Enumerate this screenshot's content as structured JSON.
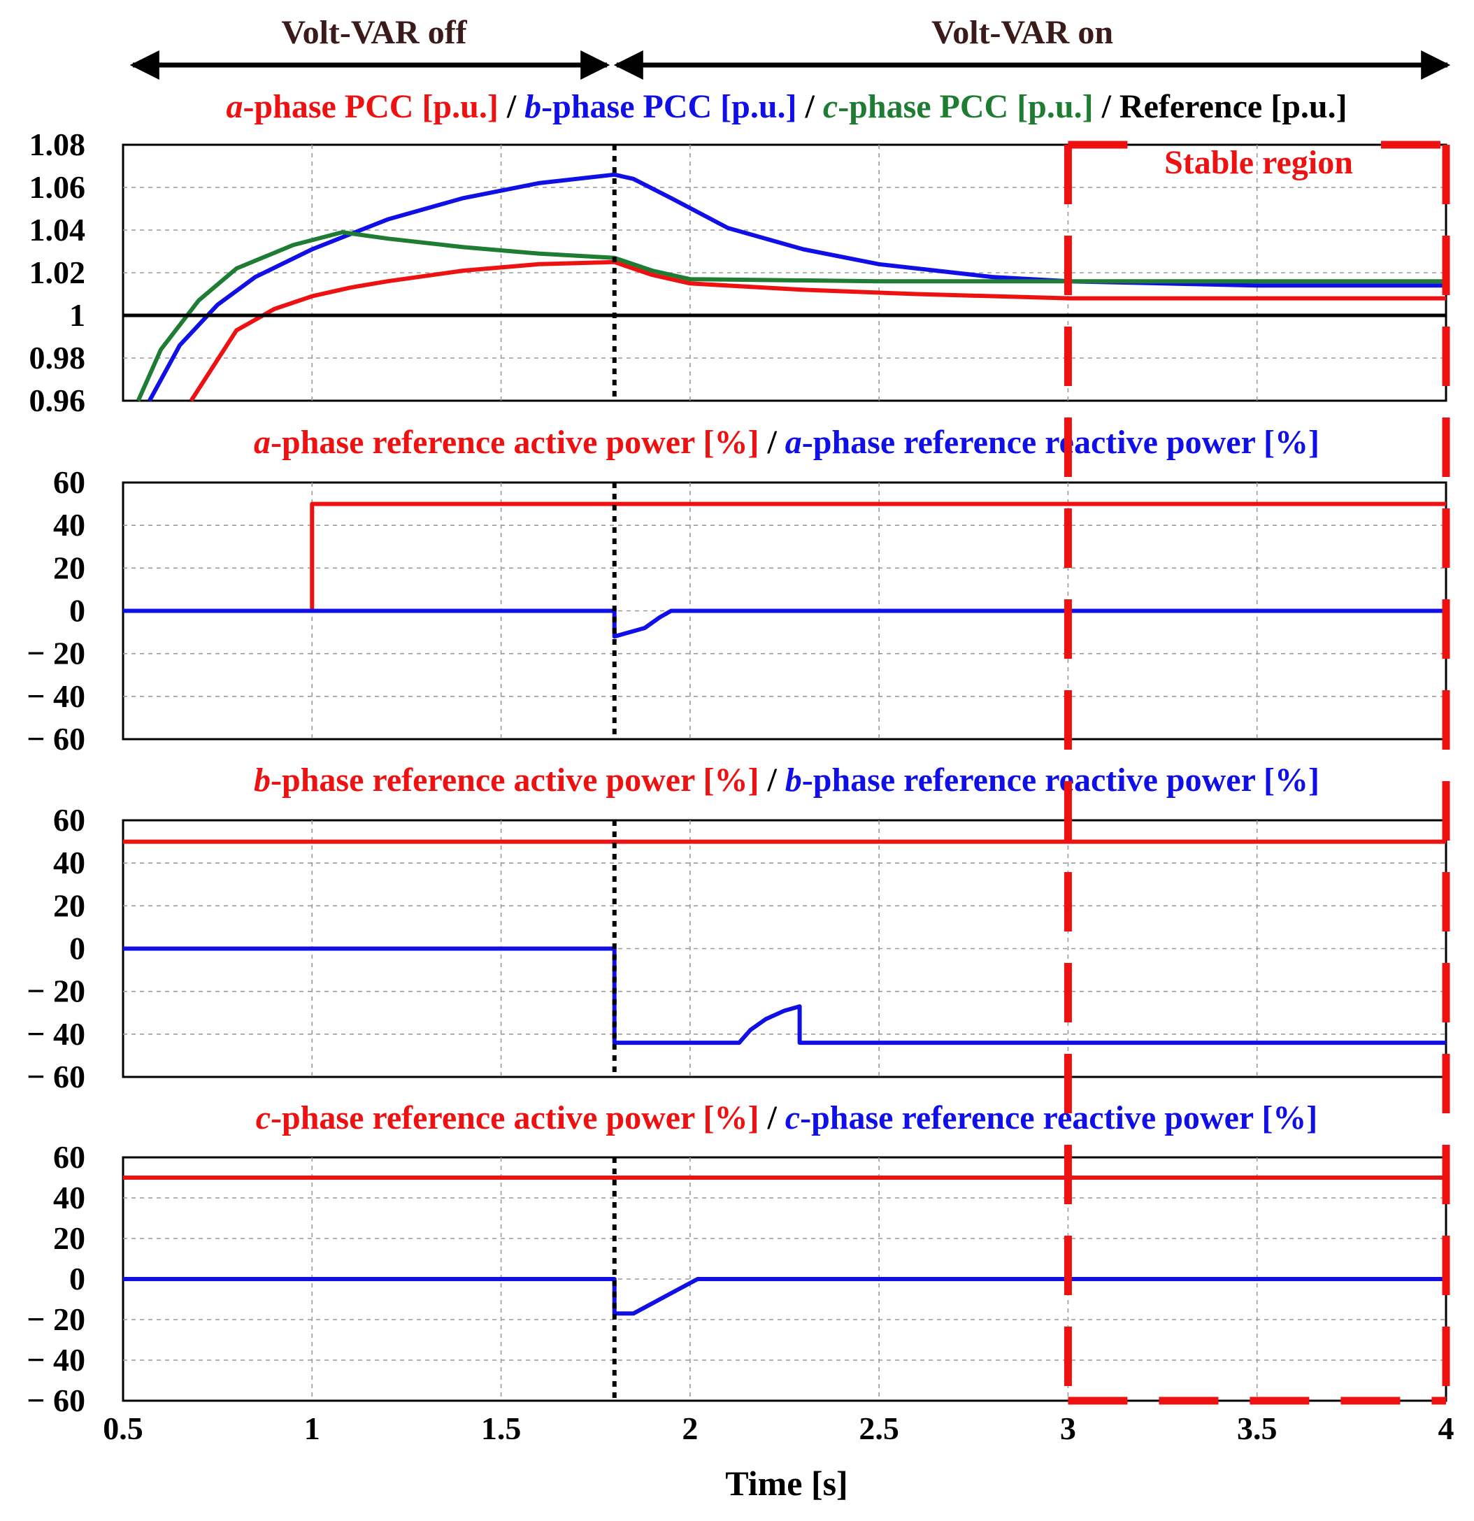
{
  "header": {
    "left_label": "Volt-VAR off",
    "right_label": "Volt-VAR on"
  },
  "stable_region_label": "Stable region",
  "x_axis": {
    "label": "Time [s]",
    "ticks": [
      "0.5",
      "1",
      "1.5",
      "2",
      "2.5",
      "3",
      "3.5",
      "4"
    ]
  },
  "colors": {
    "red": "#ee1111",
    "blue": "#1010e6",
    "green": "#1e7d32",
    "black": "#000000"
  },
  "chart_data": [
    {
      "type": "line",
      "title_parts": [
        {
          "text": "a",
          "italic": true,
          "color": "red"
        },
        {
          "text": "-phase PCC [p.u.]",
          "color": "red"
        },
        {
          "text": " / ",
          "color": "black"
        },
        {
          "text": "b",
          "italic": true,
          "color": "blue"
        },
        {
          "text": "-phase PCC [p.u.]",
          "color": "blue"
        },
        {
          "text": " / ",
          "color": "black"
        },
        {
          "text": "c",
          "italic": true,
          "color": "green"
        },
        {
          "text": "-phase PCC [p.u.]",
          "color": "green"
        },
        {
          "text": " / Reference [p.u.]",
          "color": "black"
        }
      ],
      "xlim": [
        0.5,
        4
      ],
      "ylim": [
        0.96,
        1.08
      ],
      "yticks": [
        "1.08",
        "1.06",
        "1.04",
        "1.02",
        "1",
        "0.98",
        "0.96"
      ],
      "series": [
        {
          "name": "a-phase PCC [p.u.]",
          "color": "red",
          "x": [
            0.68,
            0.8,
            0.9,
            1.0,
            1.1,
            1.2,
            1.4,
            1.6,
            1.8,
            1.9,
            2.0,
            2.3,
            2.6,
            3.0,
            3.5,
            4.0
          ],
          "y": [
            0.96,
            0.993,
            1.003,
            1.009,
            1.013,
            1.016,
            1.021,
            1.024,
            1.025,
            1.019,
            1.015,
            1.012,
            1.01,
            1.008,
            1.008,
            1.008
          ]
        },
        {
          "name": "b-phase PCC [p.u.]",
          "color": "blue",
          "x": [
            0.57,
            0.65,
            0.75,
            0.85,
            1.0,
            1.1,
            1.2,
            1.4,
            1.6,
            1.8,
            1.85,
            1.95,
            2.1,
            2.3,
            2.5,
            2.8,
            3.0,
            3.5,
            4.0
          ],
          "y": [
            0.96,
            0.986,
            1.005,
            1.018,
            1.031,
            1.038,
            1.045,
            1.055,
            1.062,
            1.066,
            1.064,
            1.055,
            1.041,
            1.031,
            1.024,
            1.018,
            1.016,
            1.014,
            1.014
          ]
        },
        {
          "name": "c-phase PCC [p.u.]",
          "color": "green",
          "x": [
            0.54,
            0.6,
            0.7,
            0.8,
            0.95,
            1.08,
            1.2,
            1.4,
            1.6,
            1.8,
            1.9,
            2.0,
            2.5,
            3.0,
            4.0
          ],
          "y": [
            0.96,
            0.984,
            1.007,
            1.022,
            1.033,
            1.039,
            1.036,
            1.032,
            1.029,
            1.027,
            1.021,
            1.017,
            1.016,
            1.016,
            1.016
          ]
        },
        {
          "name": "Reference [p.u.]",
          "color": "black",
          "x": [
            0.5,
            4.0
          ],
          "y": [
            1.0,
            1.0
          ]
        }
      ]
    },
    {
      "type": "line",
      "title_parts": [
        {
          "text": "a",
          "italic": true,
          "color": "red"
        },
        {
          "text": "-phase reference active power [%]",
          "color": "red"
        },
        {
          "text": " / ",
          "color": "black"
        },
        {
          "text": "a",
          "italic": true,
          "color": "blue"
        },
        {
          "text": "-phase reference reactive power [%]",
          "color": "blue"
        }
      ],
      "xlim": [
        0.5,
        4
      ],
      "ylim": [
        -60,
        60
      ],
      "yticks": [
        "60",
        "40",
        "20",
        "0",
        "− 20",
        "− 40",
        "− 60"
      ],
      "series": [
        {
          "name": "a-phase reference active power [%]",
          "color": "red",
          "x": [
            1.0,
            1.0,
            4.0
          ],
          "y": [
            0,
            50,
            50
          ]
        },
        {
          "name": "a-phase reference reactive power [%]",
          "color": "blue",
          "x": [
            0.5,
            1.8,
            1.8,
            1.88,
            1.92,
            1.95,
            4.0
          ],
          "y": [
            0,
            0,
            -12,
            -8,
            -3,
            0,
            0
          ]
        }
      ]
    },
    {
      "type": "line",
      "title_parts": [
        {
          "text": "b",
          "italic": true,
          "color": "red"
        },
        {
          "text": "-phase reference active power [%]",
          "color": "red"
        },
        {
          "text": " / ",
          "color": "black"
        },
        {
          "text": "b",
          "italic": true,
          "color": "blue"
        },
        {
          "text": "-phase reference reactive power [%]",
          "color": "blue"
        }
      ],
      "xlim": [
        0.5,
        4
      ],
      "ylim": [
        -60,
        60
      ],
      "yticks": [
        "60",
        "40",
        "20",
        "0",
        "− 20",
        "− 40",
        "− 60"
      ],
      "series": [
        {
          "name": "b-phase reference active power [%]",
          "color": "red",
          "x": [
            0.5,
            4.0
          ],
          "y": [
            50,
            50
          ]
        },
        {
          "name": "b-phase reference reactive power [%]",
          "color": "blue",
          "x": [
            0.5,
            1.8,
            1.8,
            2.13,
            2.16,
            2.2,
            2.25,
            2.29,
            2.29,
            4.0
          ],
          "y": [
            0,
            0,
            -44,
            -44,
            -38,
            -33,
            -29,
            -27,
            -44,
            -44
          ]
        }
      ]
    },
    {
      "type": "line",
      "title_parts": [
        {
          "text": "c",
          "italic": true,
          "color": "red"
        },
        {
          "text": "-phase reference active power [%]",
          "color": "red"
        },
        {
          "text": " / ",
          "color": "black"
        },
        {
          "text": "c",
          "italic": true,
          "color": "blue"
        },
        {
          "text": "-phase reference reactive power [%]",
          "color": "blue"
        }
      ],
      "xlim": [
        0.5,
        4
      ],
      "ylim": [
        -60,
        60
      ],
      "yticks": [
        "60",
        "40",
        "20",
        "0",
        "− 20",
        "− 40",
        "− 60"
      ],
      "series": [
        {
          "name": "c-phase reference active power [%]",
          "color": "red",
          "x": [
            0.5,
            4.0
          ],
          "y": [
            50,
            50
          ]
        },
        {
          "name": "c-phase reference reactive power [%]",
          "color": "blue",
          "x": [
            0.5,
            1.8,
            1.8,
            1.85,
            1.9,
            1.96,
            2.02,
            4.0
          ],
          "y": [
            0,
            0,
            -17,
            -17,
            -12,
            -6,
            0,
            0
          ]
        }
      ]
    }
  ],
  "events": {
    "switch_time": 1.8,
    "stable_region_x": [
      3.0,
      4.0
    ]
  }
}
